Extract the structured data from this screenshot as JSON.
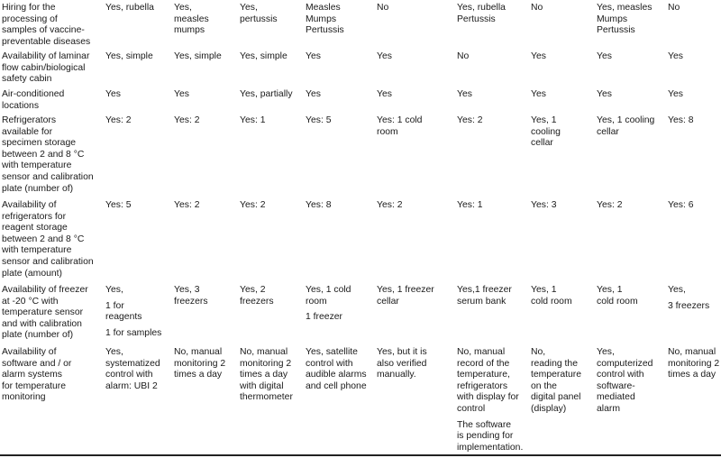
{
  "table": {
    "rows": [
      {
        "label": "Hiring for the\nprocessing of\nsamples of vaccine-\npreventable diseases",
        "cells": [
          [
            "Yes, rubella"
          ],
          [
            "Yes,\nmeasles\nmumps"
          ],
          [
            "Yes,\npertussis"
          ],
          [
            "Measles\nMumps\nPertussis"
          ],
          [
            "No"
          ],
          [
            "Yes, rubella\nPertussis"
          ],
          [
            "No"
          ],
          [
            "Yes, measles\nMumps\nPertussis"
          ],
          [
            "No"
          ]
        ]
      },
      {
        "label": "Availability of laminar\nflow cabin/biological\nsafety cabin",
        "cells": [
          [
            "Yes, simple"
          ],
          [
            "Yes, simple"
          ],
          [
            "Yes, simple"
          ],
          [
            "Yes"
          ],
          [
            "Yes"
          ],
          [
            "No"
          ],
          [
            "Yes"
          ],
          [
            "Yes"
          ],
          [
            "Yes"
          ]
        ]
      },
      {
        "label": "Air-conditioned\nlocations",
        "cells": [
          [
            "Yes"
          ],
          [
            "Yes"
          ],
          [
            "Yes, partially"
          ],
          [
            "Yes"
          ],
          [
            "Yes"
          ],
          [
            "Yes"
          ],
          [
            "Yes"
          ],
          [
            "Yes"
          ],
          [
            "Yes"
          ]
        ]
      },
      {
        "label": "Refrigerators\navailable for\nspecimen storage\nbetween 2 and 8 °C\nwith temperature\nsensor and calibration\nplate (number of)",
        "cells": [
          [
            "Yes: 2"
          ],
          [
            "Yes: 2"
          ],
          [
            "Yes: 1"
          ],
          [
            "Yes: 5"
          ],
          [
            "Yes: 1 cold\nroom"
          ],
          [
            "Yes: 2"
          ],
          [
            "Yes, 1\ncooling\ncellar"
          ],
          [
            "Yes, 1 cooling\ncellar"
          ],
          [
            "Yes: 8"
          ]
        ]
      },
      {
        "label": "Availability of\nrefrigerators for\nreagent storage\nbetween 2 and 8 °C\nwith temperature\nsensor and calibration\nplate (amount)",
        "cells": [
          [
            "Yes: 5"
          ],
          [
            "Yes: 2"
          ],
          [
            "Yes: 2"
          ],
          [
            "Yes: 8"
          ],
          [
            "Yes: 2"
          ],
          [
            "Yes: 1"
          ],
          [
            "Yes: 3"
          ],
          [
            "Yes: 2"
          ],
          [
            "Yes: 6"
          ]
        ]
      },
      {
        "label": "Availability of freezer\nat -20 °C with\ntemperature sensor\nand with calibration\nplate (number of)",
        "cells": [
          [
            "Yes,",
            "1 for\nreagents",
            "1 for samples"
          ],
          [
            "Yes, 3\nfreezers"
          ],
          [
            "Yes, 2\nfreezers"
          ],
          [
            "Yes, 1 cold\nroom",
            "1 freezer"
          ],
          [
            "Yes, 1 freezer\ncellar"
          ],
          [
            "Yes,1 freezer\nserum bank"
          ],
          [
            "Yes, 1\ncold room"
          ],
          [
            "Yes, 1\ncold room"
          ],
          [
            "Yes,",
            "3 freezers"
          ]
        ]
      },
      {
        "label": "Availability of\nsoftware and / or\nalarm systems\nfor temperature\nmonitoring",
        "cells": [
          [
            "Yes,\nsystematized\ncontrol with\nalarm: UBI 2"
          ],
          [
            "No, manual\nmonitoring 2\ntimes a day"
          ],
          [
            "No, manual\nmonitoring 2\ntimes a day\nwith digital\nthermometer"
          ],
          [
            "Yes, satellite\ncontrol with\naudible alarms\nand cell phone"
          ],
          [
            "Yes, but it is\nalso verified\nmanually."
          ],
          [
            "No, manual\nrecord of the\ntemperature,\nrefrigerators\nwith display for\ncontrol",
            "The software\nis pending for\nimplementation."
          ],
          [
            "No,\nreading the\ntemperature\non the\ndigital panel\n(display)"
          ],
          [
            "Yes,\ncomputerized\ncontrol with\nsoftware-\nmediated\nalarm"
          ],
          [
            "No, manual\nmonitoring 2\ntimes a day"
          ]
        ]
      }
    ]
  }
}
